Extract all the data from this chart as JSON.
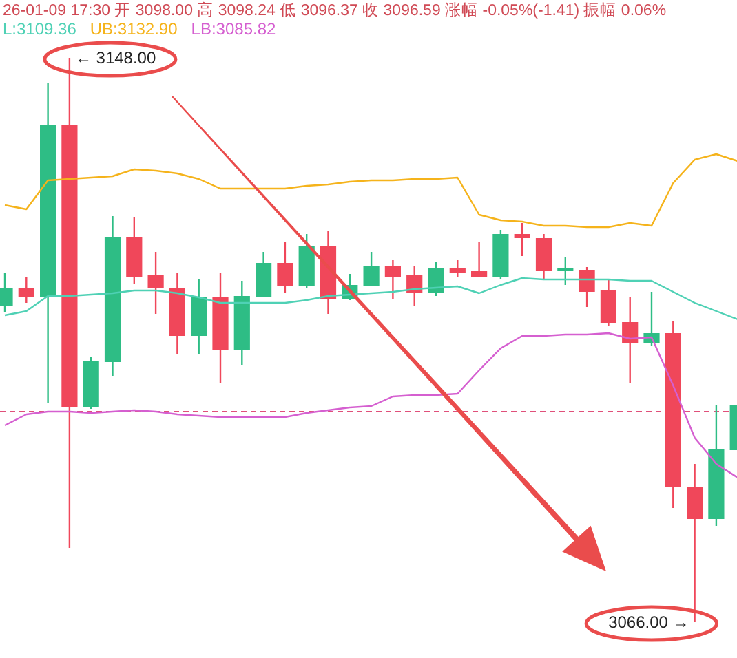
{
  "chart_data": {
    "type": "candlestick",
    "categories": [
      null,
      null,
      null,
      null,
      null,
      null,
      null,
      null,
      null,
      null,
      null,
      null,
      null,
      null,
      null,
      null,
      null,
      null,
      null,
      null,
      null,
      null,
      null,
      null,
      null,
      null,
      null,
      null,
      null,
      null,
      null,
      null,
      null,
      null,
      null
    ],
    "ohlc": [
      [
        3112.0,
        3116.8,
        3111.0,
        3114.6
      ],
      [
        3114.6,
        3116.2,
        3112.4,
        3113.2
      ],
      [
        3113.2,
        3144.4,
        3097.8,
        3138.2
      ],
      [
        3138.2,
        3148.0,
        3076.8,
        3097.2
      ],
      [
        3097.2,
        3104.6,
        3097.0,
        3104.0
      ],
      [
        3103.8,
        3125.0,
        3101.8,
        3122.0
      ],
      [
        3122.0,
        3124.8,
        3115.2,
        3116.2
      ],
      [
        3116.4,
        3119.8,
        3110.8,
        3114.6
      ],
      [
        3114.6,
        3116.8,
        3105.0,
        3107.6
      ],
      [
        3107.6,
        3115.8,
        3105.0,
        3113.2
      ],
      [
        3113.2,
        3116.8,
        3100.8,
        3105.6
      ],
      [
        3105.6,
        3115.6,
        3103.4,
        3113.4
      ],
      [
        3113.2,
        3119.8,
        3113.2,
        3118.2
      ],
      [
        3118.2,
        3121.2,
        3113.8,
        3114.8
      ],
      [
        3114.8,
        3122.4,
        3114.6,
        3120.6
      ],
      [
        3120.6,
        3122.8,
        3110.8,
        3113.0
      ],
      [
        3113.0,
        3116.6,
        3112.8,
        3115.0
      ],
      [
        3114.8,
        3119.8,
        3114.8,
        3117.8
      ],
      [
        3117.8,
        3118.6,
        3113.0,
        3116.2
      ],
      [
        3116.4,
        3117.8,
        3112.0,
        3113.8
      ],
      [
        3113.8,
        3118.4,
        3113.4,
        3117.4
      ],
      [
        3117.4,
        3118.6,
        3116.2,
        3116.8
      ],
      [
        3117.0,
        3121.2,
        3116.2,
        3116.2
      ],
      [
        3116.2,
        3123.0,
        3115.8,
        3122.4
      ],
      [
        3122.4,
        3124.0,
        3119.2,
        3121.8
      ],
      [
        3121.8,
        3122.4,
        3115.8,
        3117.0
      ],
      [
        3117.0,
        3119.0,
        3115.0,
        3117.4
      ],
      [
        3117.2,
        3117.6,
        3111.8,
        3114.0
      ],
      [
        3114.2,
        3115.8,
        3109.0,
        3109.4
      ],
      [
        3109.6,
        3113.2,
        3100.8,
        3106.6
      ],
      [
        3106.6,
        3114.0,
        3106.2,
        3108.0
      ],
      [
        3108.0,
        3109.8,
        3082.6,
        3085.6
      ],
      [
        3085.6,
        3089.0,
        3066.0,
        3081.0
      ],
      [
        3081.0,
        3097.6,
        3080.0,
        3091.2
      ],
      [
        3091.0,
        3097.8,
        3091.0,
        3097.6
      ]
    ],
    "colors": [
      "#2ebd85",
      "#f0475a",
      "#2ebd85",
      "#f0475a",
      "#2ebd85",
      "#2ebd85",
      "#f0475a",
      "#f0475a",
      "#f0475a",
      "#2ebd85",
      "#f0475a",
      "#2ebd85",
      "#2ebd85",
      "#f0475a",
      "#2ebd85",
      "#f0475a",
      "#2ebd85",
      "#2ebd85",
      "#f0475a",
      "#f0475a",
      "#2ebd85",
      "#f0475a",
      "#f0475a",
      "#2ebd85",
      "#f0475a",
      "#f0475a",
      "#2ebd85",
      "#f0475a",
      "#f0475a",
      "#f0475a",
      "#2ebd85",
      "#f0475a",
      "#f0475a",
      "#2ebd85",
      "#2ebd85"
    ],
    "series": [
      {
        "type": "line",
        "name": "L:3109.36",
        "color": "#4fd1b5",
        "values": [
          3110.6,
          3111.2,
          3113.4,
          3113.4,
          3113.6,
          3113.8,
          3114.2,
          3114.2,
          3113.8,
          3113.2,
          3112.4,
          3112.4,
          3112.4,
          3112.4,
          3112.8,
          3113.4,
          3113.6,
          3113.8,
          3114.0,
          3114.4,
          3114.6,
          3114.8,
          3113.8,
          3115.0,
          3116.0,
          3115.8,
          3115.8,
          3115.8,
          3115.8,
          3115.6,
          3115.6,
          3114.0,
          3112.4,
          3111.2,
          3110.0
        ]
      },
      {
        "type": "line",
        "name": "UB:3132.90",
        "color": "#f5b31b",
        "values": [
          3126.6,
          3126.0,
          3130.2,
          3130.4,
          3130.6,
          3130.8,
          3131.8,
          3131.6,
          3131.2,
          3130.4,
          3129.0,
          3129.0,
          3129.0,
          3129.0,
          3129.4,
          3129.6,
          3130.0,
          3130.2,
          3130.2,
          3130.4,
          3130.4,
          3130.6,
          3125.2,
          3124.4,
          3124.2,
          3123.6,
          3123.6,
          3123.4,
          3123.4,
          3124.0,
          3123.6,
          3129.8,
          3133.2,
          3134.0,
          3133.0
        ]
      },
      {
        "type": "line",
        "name": "LB:3085.82",
        "color": "#d55fd0",
        "values": [
          3094.6,
          3096.2,
          3096.6,
          3096.6,
          3096.4,
          3096.6,
          3096.8,
          3096.6,
          3096.2,
          3096.0,
          3095.8,
          3095.8,
          3095.8,
          3095.8,
          3096.4,
          3096.8,
          3097.2,
          3097.4,
          3098.8,
          3099.0,
          3099.0,
          3099.2,
          3102.6,
          3105.8,
          3107.6,
          3107.6,
          3107.8,
          3107.8,
          3108.0,
          3107.2,
          3107.4,
          3100.4,
          3092.8,
          3089.0,
          3087.0
        ]
      }
    ],
    "tick_labels": false,
    "legend": "top left",
    "ref_lines": [
      {
        "axis": "y",
        "value": 3096.6,
        "color": "#e0507a",
        "line_style": "dashed"
      }
    ],
    "annotations": [
      "26-01-09 17:30 开 3098.00 高 3098.24 低 3096.37 收 3096.59 涨幅 -0.05%(-1.41) 振幅 0.06%",
      "← 3148.00",
      "3066.00 →"
    ]
  }
}
